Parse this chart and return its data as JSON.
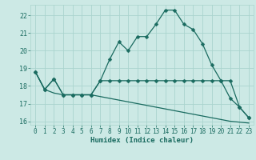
{
  "xlabel": "Humidex (Indice chaleur)",
  "background_color": "#cce9e5",
  "grid_color": "#aad4ce",
  "line_color": "#1a6b60",
  "ylim": [
    15.8,
    22.6
  ],
  "xlim": [
    -0.5,
    23.5
  ],
  "yticks": [
    16,
    17,
    18,
    19,
    20,
    21,
    22
  ],
  "xticks": [
    0,
    1,
    2,
    3,
    4,
    5,
    6,
    7,
    8,
    9,
    10,
    11,
    12,
    13,
    14,
    15,
    16,
    17,
    18,
    19,
    20,
    21,
    22,
    23
  ],
  "series1_x": [
    0,
    1,
    2,
    3,
    4,
    5,
    6,
    7,
    8,
    9,
    10,
    11,
    12,
    13,
    14,
    15,
    16,
    17,
    18,
    19,
    20,
    21,
    22,
    23
  ],
  "series1_y": [
    18.8,
    17.8,
    18.4,
    17.5,
    17.5,
    17.5,
    17.5,
    18.3,
    19.5,
    20.5,
    20.0,
    20.8,
    20.8,
    21.5,
    22.3,
    22.3,
    21.5,
    21.2,
    20.4,
    19.2,
    18.3,
    17.3,
    16.8,
    16.2
  ],
  "series2_x": [
    0,
    1,
    2,
    3,
    4,
    5,
    6,
    7,
    8,
    9,
    10,
    11,
    12,
    13,
    14,
    15,
    16,
    17,
    18,
    19,
    20,
    21,
    22,
    23
  ],
  "series2_y": [
    18.8,
    17.8,
    18.4,
    17.5,
    17.5,
    17.5,
    17.5,
    18.3,
    18.3,
    18.3,
    18.3,
    18.3,
    18.3,
    18.3,
    18.3,
    18.3,
    18.3,
    18.3,
    18.3,
    18.3,
    18.3,
    18.3,
    16.8,
    16.2
  ],
  "series3_x": [
    0,
    1,
    2,
    3,
    4,
    5,
    6,
    7,
    8,
    9,
    10,
    11,
    12,
    13,
    14,
    15,
    16,
    17,
    18,
    19,
    20,
    21,
    22,
    23
  ],
  "series3_y": [
    18.8,
    17.8,
    17.6,
    17.5,
    17.5,
    17.5,
    17.5,
    17.4,
    17.3,
    17.2,
    17.1,
    17.0,
    16.9,
    16.8,
    16.7,
    16.6,
    16.5,
    16.4,
    16.3,
    16.2,
    16.1,
    16.0,
    15.95,
    15.9
  ]
}
